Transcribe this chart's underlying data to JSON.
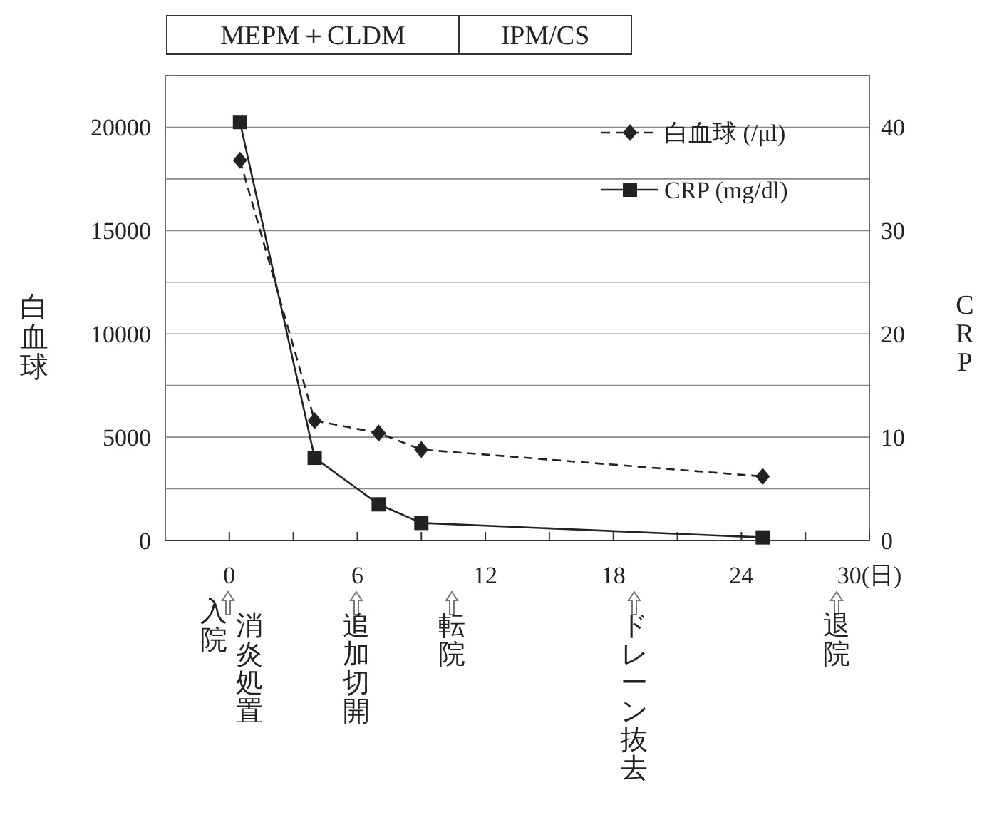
{
  "chart_data": {
    "type": "line",
    "ylabel": "白血球",
    "y2label": "CRP",
    "xlim": [
      -3,
      30
    ],
    "xticks": [
      0,
      {
        "value": 3,
        "label": null
      },
      6,
      {
        "value": 9,
        "label": null
      },
      12,
      {
        "value": 15,
        "label": null
      },
      18,
      {
        "value": 21,
        "label": null
      },
      24,
      {
        "value": 27,
        "label": null
      },
      {
        "value": 30,
        "label": "30(日)"
      }
    ],
    "ylim": [
      0,
      22500
    ],
    "yticks": [
      0,
      {
        "value": 2500,
        "label": null
      },
      5000,
      {
        "value": 7500,
        "label": null
      },
      10000,
      {
        "value": 12500,
        "label": null
      },
      15000,
      {
        "value": 17500,
        "label": null
      },
      20000
    ],
    "y2lim": [
      0,
      45
    ],
    "y2ticks": [
      0,
      10,
      20,
      30,
      40
    ],
    "grid": "y",
    "legend": "top right",
    "series": [
      {
        "name": "白血球 (/μl)",
        "color": "#222222",
        "marker": "diamond",
        "line_style": "dashed",
        "x": [
          0.5,
          4,
          7,
          9,
          25
        ],
        "values": [
          18400,
          5800,
          5200,
          4400,
          3100
        ]
      },
      {
        "name": "CRP (mg/dl)",
        "color": "#222222",
        "marker": "square",
        "line_style": "solid",
        "axis": "y2",
        "x": [
          0.5,
          4,
          7,
          9,
          25
        ],
        "values": [
          40.5,
          8.0,
          3.5,
          1.7,
          0.3
        ]
      }
    ],
    "annotations": [
      "MEPM＋CLDM",
      "IPM/CS",
      "入院",
      "消炎処置",
      "追加切開",
      "転院",
      "ドレーン抜去",
      "退院"
    ]
  }
}
